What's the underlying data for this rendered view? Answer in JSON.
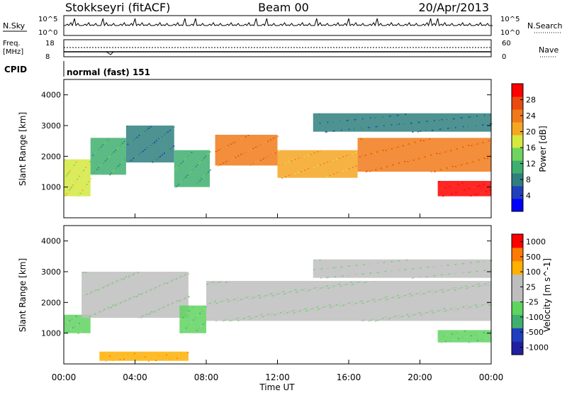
{
  "header": {
    "station": "Stokkseyri (fitACF)",
    "beam": "Beam 00",
    "date": "20/Apr/2013"
  },
  "nsky_panel": {
    "left_label": "N.Sky",
    "right_label": "N.Search",
    "left_ticks": [
      "10^5",
      "10^0"
    ],
    "right_ticks": [
      "10^5",
      "10^0"
    ]
  },
  "freq_panel": {
    "left_label_1": "Freq.",
    "left_label_2": "[MHz]",
    "right_label": "Nave",
    "left_ticks": [
      "18",
      "8"
    ],
    "right_ticks": [
      "60",
      "0"
    ]
  },
  "cpid_panel": {
    "label": "CPID",
    "text": "normal (fast) 151"
  },
  "colors": {
    "power": [
      "#0000ff",
      "#1f3fbf",
      "#2f7f7f",
      "#3faf6f",
      "#6fd45f",
      "#d4e83f",
      "#f5a623",
      "#f07a1a",
      "#e84a10",
      "#ff0000"
    ],
    "velocity": [
      "#ff0000",
      "#ff7a00",
      "#ffb000",
      "#bebebe",
      "#bebebe",
      "#5fd45f",
      "#3faf6f",
      "#1f3fbf",
      "#2020a0"
    ],
    "scatter_ground": "#c0c0c0"
  },
  "chart_data": [
    {
      "type": "heatmap",
      "name_panel": "power",
      "ylabel": "Slant Range [km]",
      "ylim": [
        0,
        4500
      ],
      "yticks": [
        "1000",
        "2000",
        "3000",
        "4000"
      ],
      "colorbar_label": "Power [dB]",
      "colorbar_ticks": [
        "4",
        "8",
        "12",
        "16",
        "20",
        "24",
        "28"
      ],
      "bands": [
        {
          "x": [
            0.0,
            1.5
          ],
          "y": [
            700,
            1900
          ],
          "level": 0.55
        },
        {
          "x": [
            1.5,
            3.5
          ],
          "y": [
            1400,
            2600
          ],
          "level": 0.35
        },
        {
          "x": [
            3.5,
            6.2
          ],
          "y": [
            1800,
            3000
          ],
          "level": 0.25
        },
        {
          "x": [
            6.2,
            8.2
          ],
          "y": [
            1000,
            2200
          ],
          "level": 0.35
        },
        {
          "x": [
            8.5,
            12.0
          ],
          "y": [
            1700,
            2700
          ],
          "level": 0.7
        },
        {
          "x": [
            12.0,
            16.5
          ],
          "y": [
            1300,
            2200
          ],
          "level": 0.6
        },
        {
          "x": [
            16.5,
            24.0
          ],
          "y": [
            1500,
            2600
          ],
          "level": 0.75
        },
        {
          "x": [
            14.0,
            24.0
          ],
          "y": [
            2800,
            3400
          ],
          "level": 0.2
        },
        {
          "x": [
            21.0,
            24.0
          ],
          "y": [
            700,
            1200
          ],
          "level": 0.9
        }
      ]
    },
    {
      "type": "heatmap",
      "name_panel": "velocity",
      "ylabel": "Slant Range [km]",
      "ylim": [
        0,
        4500
      ],
      "yticks": [
        "1000",
        "2000",
        "3000",
        "4000"
      ],
      "colorbar_label": "Velocity [m s^-1]",
      "colorbar_ticks": [
        "1000",
        "500",
        "100",
        "25",
        "-25",
        "-100",
        "-500",
        "-1000"
      ],
      "xlabel": "Time UT",
      "xticks": [
        "00:00",
        "04:00",
        "08:00",
        "12:00",
        "16:00",
        "20:00",
        "00:00"
      ],
      "xlim": [
        0,
        24
      ],
      "bands": [
        {
          "x": [
            0.0,
            1.5
          ],
          "y": [
            1000,
            1600
          ],
          "level": 0.65
        },
        {
          "x": [
            1.0,
            7.0
          ],
          "y": [
            1500,
            3000
          ],
          "level": 0.45
        },
        {
          "x": [
            6.5,
            8.0
          ],
          "y": [
            1000,
            1900
          ],
          "level": 0.65
        },
        {
          "x": [
            8.0,
            24.0
          ],
          "y": [
            1400,
            2700
          ],
          "level": 0.45
        },
        {
          "x": [
            14.0,
            24.0
          ],
          "y": [
            2800,
            3400
          ],
          "level": 0.45
        },
        {
          "x": [
            21.0,
            24.0
          ],
          "y": [
            700,
            1100
          ],
          "level": 0.65
        },
        {
          "x": [
            2.0,
            7.0
          ],
          "y": [
            100,
            400
          ],
          "level": 0.25
        }
      ]
    }
  ]
}
